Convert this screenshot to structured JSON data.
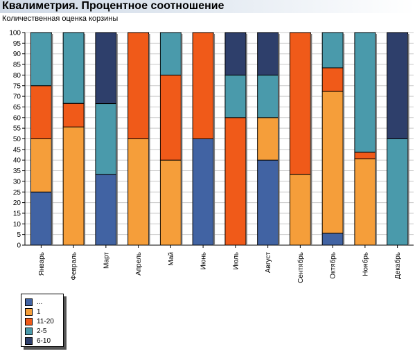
{
  "header": {
    "title": "Квалиметрия. Процентное соотношение",
    "subtitle": "Количественная оценка корзины"
  },
  "chart_data": {
    "type": "bar",
    "stacked": true,
    "title": "Квалиметрия. Процентное соотношение",
    "subtitle": "Количественная оценка корзины",
    "ylim": [
      0,
      100
    ],
    "yticks": [
      0,
      5,
      10,
      15,
      20,
      25,
      30,
      35,
      40,
      45,
      50,
      55,
      60,
      65,
      70,
      75,
      80,
      85,
      90,
      95,
      100
    ],
    "grid": true,
    "legend_position": "bottom-left",
    "categories": [
      "Январь",
      "Февраль",
      "Март",
      "Апрель",
      "Май",
      "Июнь",
      "Июль",
      "Август",
      "Сентябрь",
      "Октябрь",
      "Ноябрь",
      "Декабрь"
    ],
    "series": [
      {
        "name": "...",
        "color": "#4163a3",
        "values": [
          25,
          0,
          33.3,
          0,
          0,
          50,
          0,
          40,
          0,
          5.6,
          0,
          0
        ]
      },
      {
        "name": "1",
        "color": "#f59e3a",
        "values": [
          25,
          55.6,
          0,
          50,
          40,
          0,
          0,
          20,
          33.3,
          66.7,
          40.6,
          0
        ]
      },
      {
        "name": "11-20",
        "color": "#f05a19",
        "values": [
          25,
          11.1,
          0,
          50,
          40,
          50,
          60,
          0,
          66.7,
          11.1,
          3.1,
          0
        ]
      },
      {
        "name": "2-5",
        "color": "#4a9aab",
        "values": [
          25,
          33.3,
          33.3,
          0,
          20,
          0,
          20,
          20,
          0,
          16.6,
          56.3,
          50
        ]
      },
      {
        "name": "6-10",
        "color": "#2e3f6b",
        "values": [
          0,
          0,
          33.4,
          0,
          0,
          0,
          20,
          20,
          0,
          0,
          0,
          50
        ]
      }
    ]
  },
  "legend": {
    "items": [
      {
        "label": "...",
        "color": "#4163a3"
      },
      {
        "label": "1",
        "color": "#f59e3a"
      },
      {
        "label": "11-20",
        "color": "#f05a19"
      },
      {
        "label": "2-5",
        "color": "#4a9aab"
      },
      {
        "label": "6-10",
        "color": "#2e3f6b"
      }
    ]
  }
}
